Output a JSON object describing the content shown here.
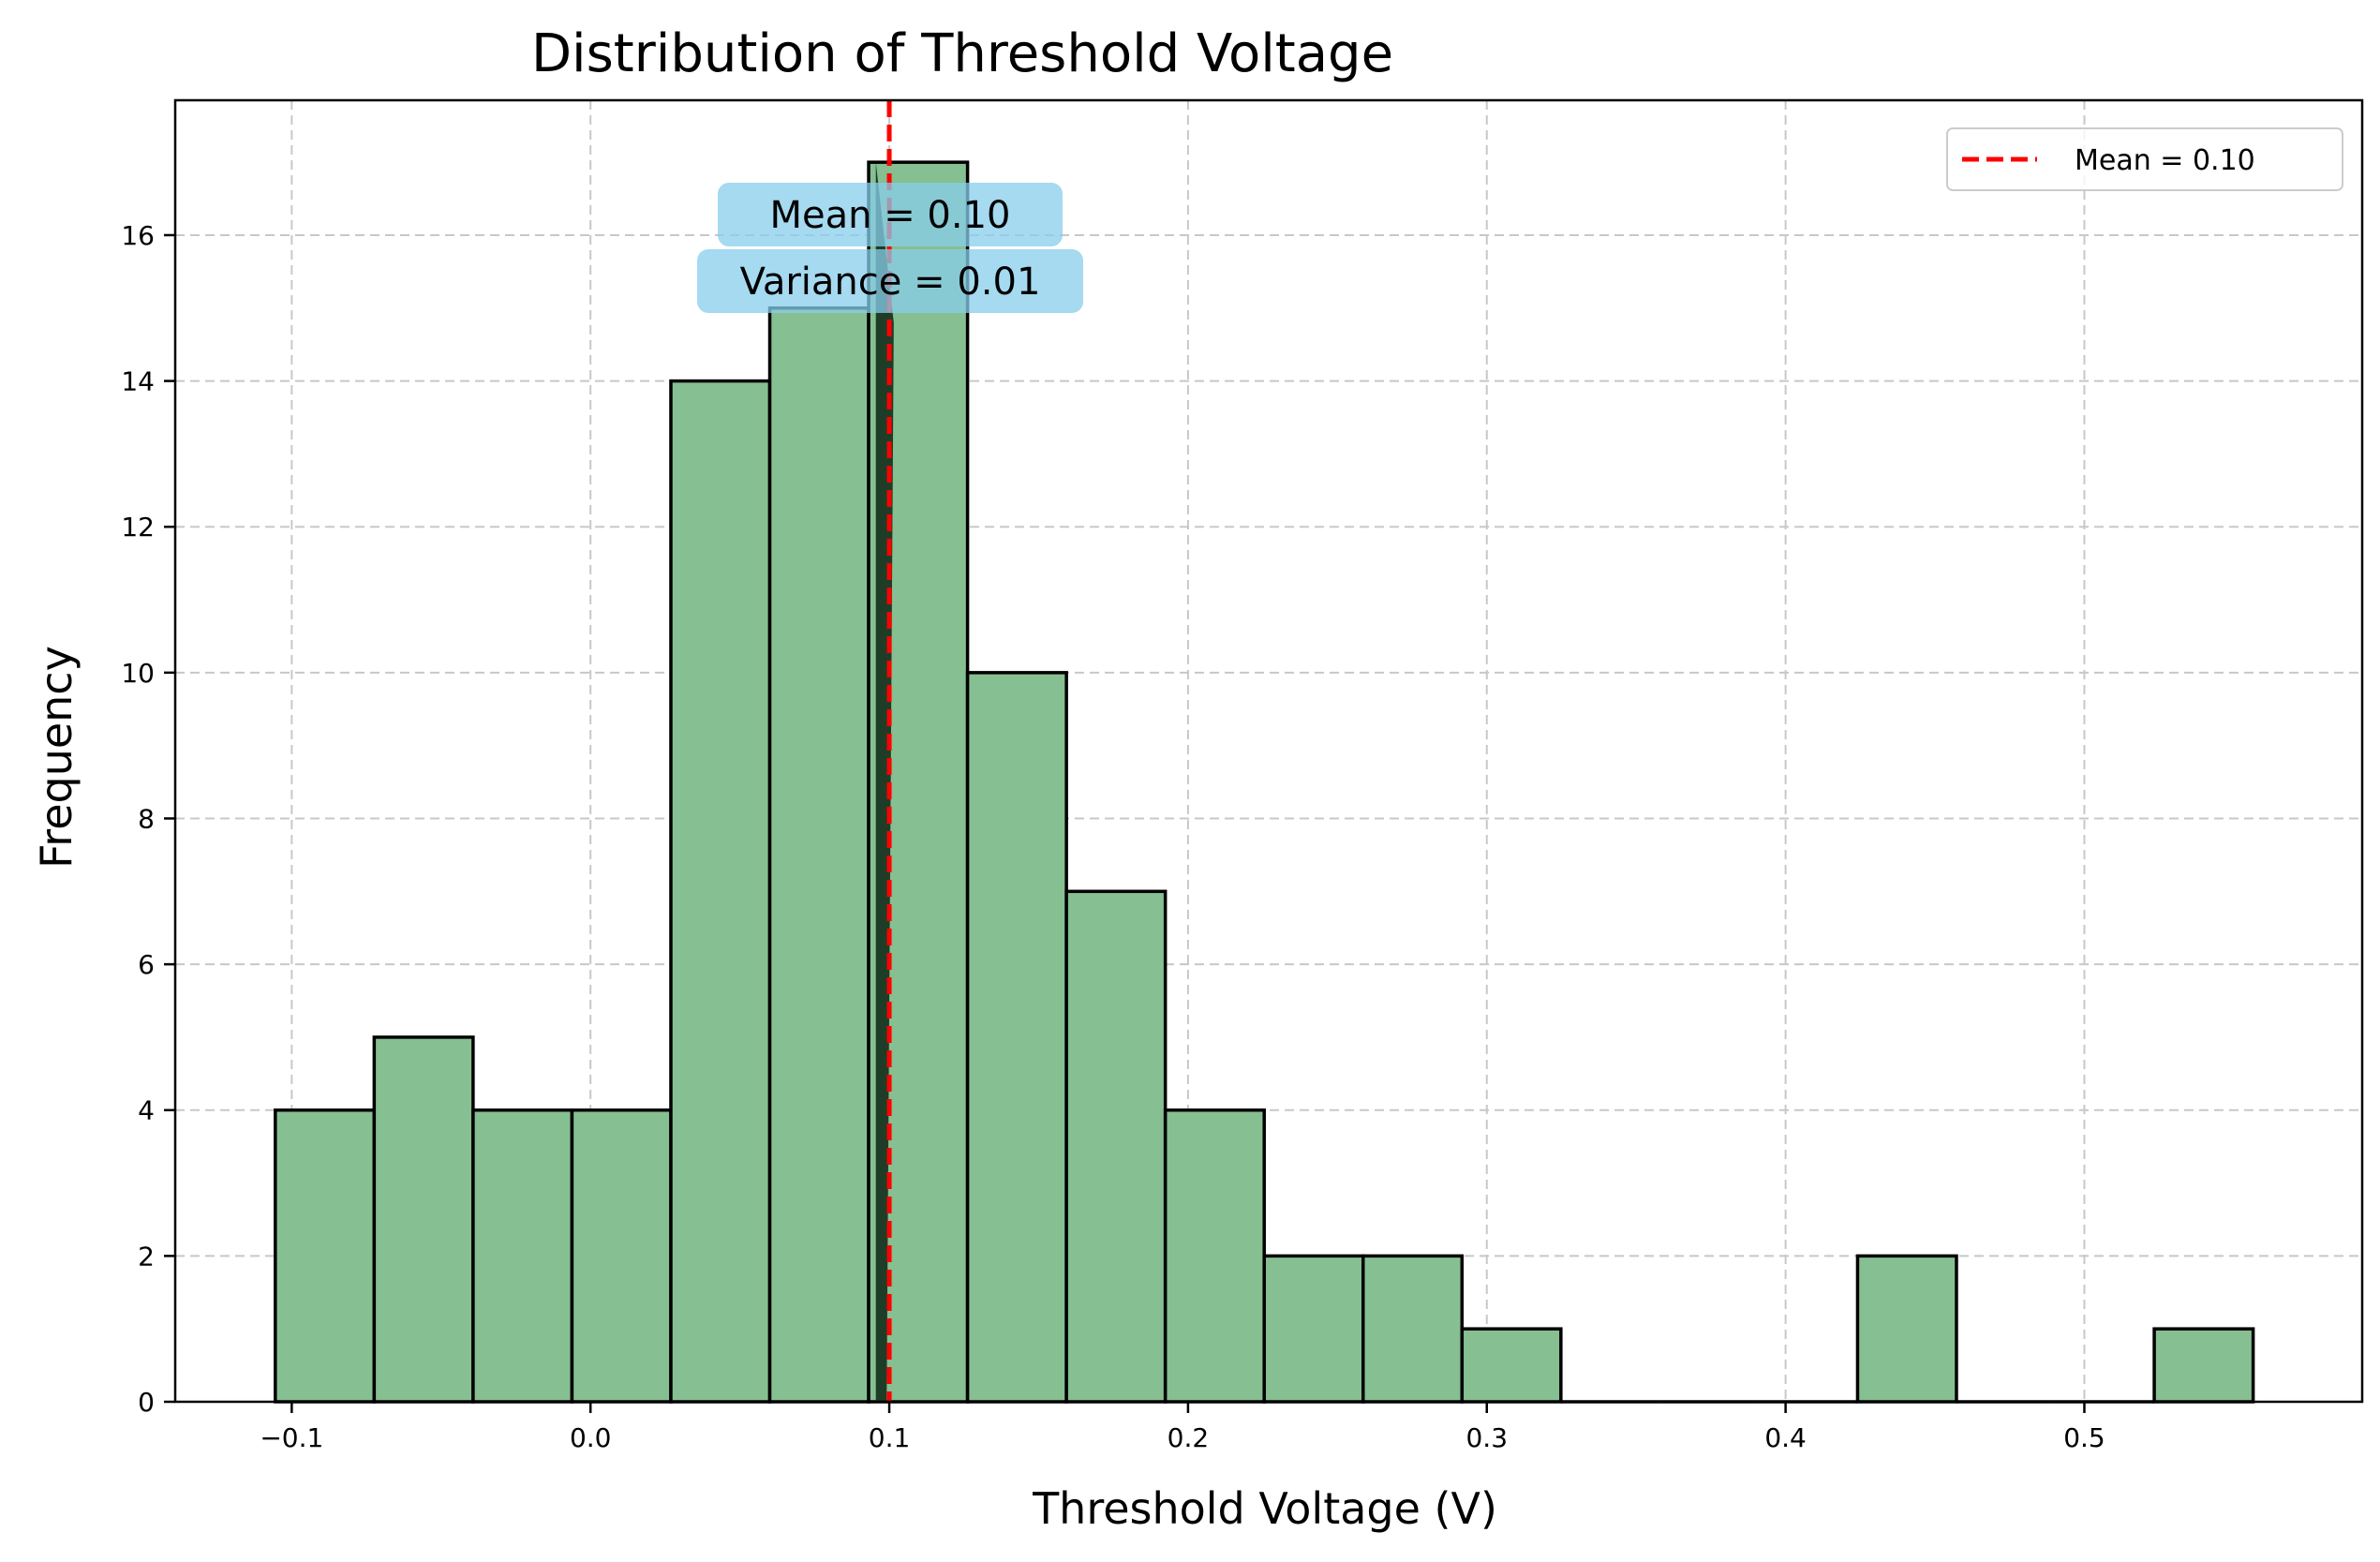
{
  "chart_data": {
    "type": "bar",
    "title": "Distribution of Threshold Voltage",
    "xlabel": "Threshold Voltage (V)",
    "ylabel": "Frequency",
    "xlim": [
      -0.139,
      0.593
    ],
    "ylim": [
      0,
      17.85
    ],
    "xticks": [
      -0.1,
      0.0,
      0.1,
      0.2,
      0.3,
      0.4,
      0.5
    ],
    "xtick_labels": [
      "−0.1",
      "0.0",
      "0.1",
      "0.2",
      "0.3",
      "0.4",
      "0.5"
    ],
    "yticks": [
      0,
      2,
      4,
      6,
      8,
      10,
      12,
      14,
      16
    ],
    "yticks_labels": [
      "0",
      "2",
      "4",
      "6",
      "8",
      "10",
      "12",
      "14",
      "16"
    ],
    "grid": true,
    "bins": [
      {
        "x0": -0.1055,
        "x1": -0.0724,
        "count": 4
      },
      {
        "x0": -0.0724,
        "x1": -0.0393,
        "count": 5
      },
      {
        "x0": -0.0393,
        "x1": -0.0062,
        "count": 4
      },
      {
        "x0": -0.0062,
        "x1": 0.0269,
        "count": 4
      },
      {
        "x0": 0.0269,
        "x1": 0.06,
        "count": 14
      },
      {
        "x0": 0.06,
        "x1": 0.0931,
        "count": 15
      },
      {
        "x0": 0.0931,
        "x1": 0.1262,
        "count": 17
      },
      {
        "x0": 0.1262,
        "x1": 0.1593,
        "count": 10
      },
      {
        "x0": 0.1593,
        "x1": 0.1924,
        "count": 7
      },
      {
        "x0": 0.1924,
        "x1": 0.2255,
        "count": 4
      },
      {
        "x0": 0.2255,
        "x1": 0.2586,
        "count": 2
      },
      {
        "x0": 0.2586,
        "x1": 0.2917,
        "count": 2
      },
      {
        "x0": 0.2917,
        "x1": 0.3248,
        "count": 1
      },
      {
        "x0": 0.3248,
        "x1": 0.3579,
        "count": 0
      },
      {
        "x0": 0.3579,
        "x1": 0.391,
        "count": 0
      },
      {
        "x0": 0.391,
        "x1": 0.4241,
        "count": 0
      },
      {
        "x0": 0.4241,
        "x1": 0.4572,
        "count": 2
      },
      {
        "x0": 0.4572,
        "x1": 0.4903,
        "count": 0
      },
      {
        "x0": 0.4903,
        "x1": 0.5234,
        "count": 0
      },
      {
        "x0": 0.5234,
        "x1": 0.5565,
        "count": 1
      }
    ],
    "mean_line": {
      "x": 0.1,
      "label": "Mean = 0.10",
      "color": "#ff0000"
    },
    "spike": {
      "x_left": 0.0955,
      "x_right": 0.1015,
      "y_top": 14.8
    },
    "annotation_lines": [
      "Mean = 0.10",
      "Variance = 0.01"
    ],
    "legend": {
      "position": "top-right",
      "entries": [
        "Mean = 0.10"
      ]
    },
    "colors": {
      "bar_fill": "#86bf91",
      "bar_edge": "#000000",
      "grid": "#c8c8c8",
      "annotation_box": "#87ceeb",
      "spike_fill": "#17311e"
    }
  }
}
